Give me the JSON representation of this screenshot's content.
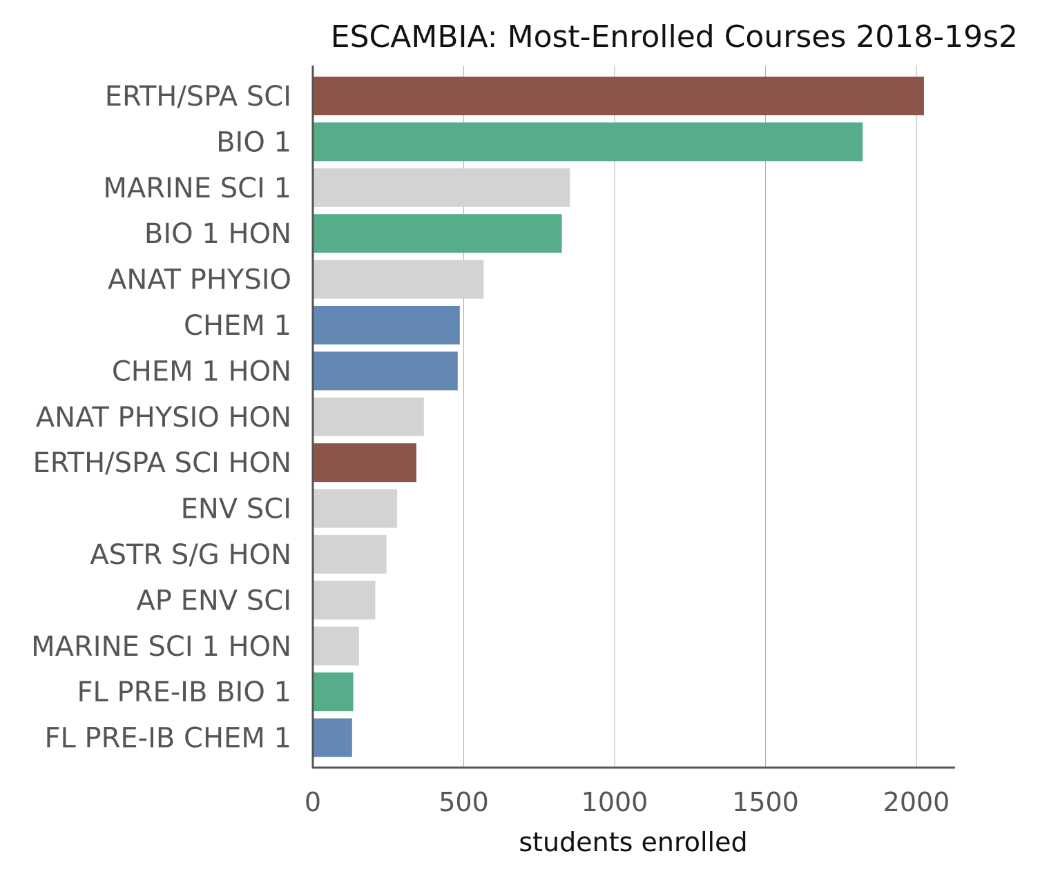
{
  "chart_data": {
    "type": "bar",
    "orientation": "horizontal",
    "title": "ESCAMBIA: Most-Enrolled Courses 2018-19s2",
    "xlabel": "students enrolled",
    "ylabel": "",
    "xlim": [
      0,
      2130
    ],
    "xticks": [
      0,
      500,
      1000,
      1500,
      2000
    ],
    "grid": "vertical lines at x ticks",
    "categories": [
      "ERTH/SPA SCI",
      "BIO 1",
      "MARINE SCI 1",
      "BIO 1 HON",
      "ANAT PHYSIO",
      "CHEM 1",
      "CHEM 1 HON",
      "ANAT PHYSIO HON",
      "ERTH/SPA SCI HON",
      "ENV SCI",
      "ASTR S/G HON",
      "AP ENV SCI",
      "MARINE SCI 1 HON",
      "FL PRE-IB BIO 1",
      "FL PRE-IB CHEM 1"
    ],
    "values": [
      2025,
      1822,
      852,
      825,
      566,
      487,
      480,
      368,
      343,
      279,
      244,
      207,
      153,
      134,
      130
    ],
    "bar_colors": [
      "#8b5649",
      "#55ad89",
      "#d3d3d3",
      "#55ad89",
      "#d3d3d3",
      "#6388b4",
      "#6388b4",
      "#d3d3d3",
      "#8b5649",
      "#d3d3d3",
      "#d3d3d3",
      "#d3d3d3",
      "#d3d3d3",
      "#55ad89",
      "#6388b4"
    ]
  }
}
